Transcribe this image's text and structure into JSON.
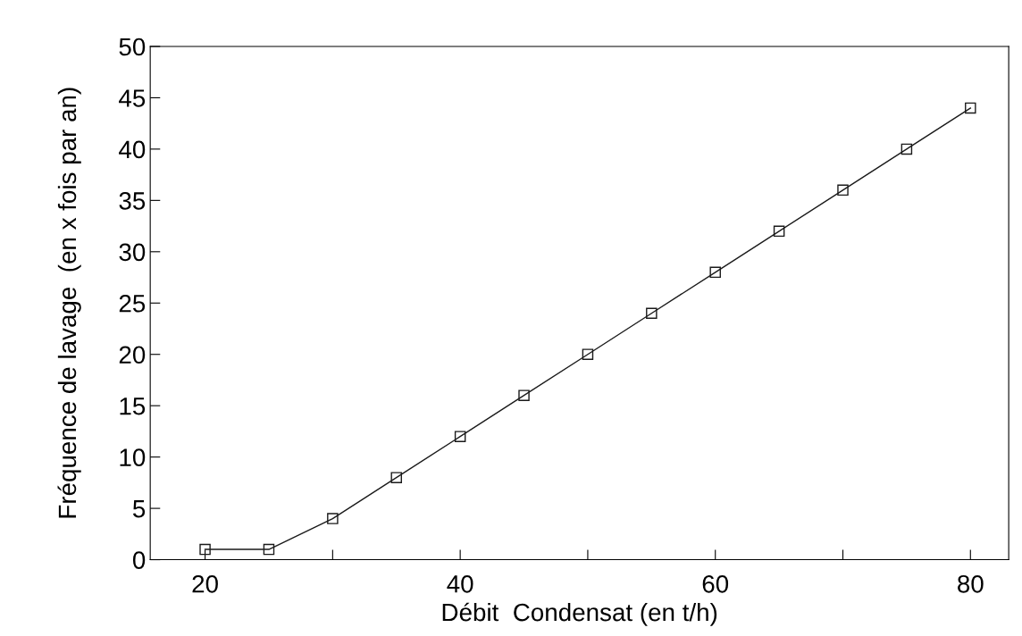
{
  "chart_data": {
    "type": "line",
    "xlabel": "Débit  Condensat (en t/h)",
    "ylabel": "Fréquence de lavage  (en x fois par an)",
    "x": [
      20,
      25,
      30,
      35,
      40,
      45,
      50,
      55,
      60,
      65,
      70,
      75,
      80
    ],
    "series": [
      {
        "color": "#1a1a1a",
        "values": [
          1,
          1,
          4,
          8,
          12,
          16,
          20,
          24,
          28,
          32,
          36,
          40,
          44
        ]
      }
    ],
    "xlim": [
      15.7,
      83
    ],
    "ylim": [
      0,
      50
    ],
    "xticks": [
      20,
      {
        "value": 30,
        "label": null
      },
      40,
      {
        "value": 50,
        "label": null
      },
      60,
      {
        "value": 70,
        "label": null
      },
      80
    ],
    "yticks": [
      0,
      5,
      10,
      15,
      20,
      25,
      30,
      35,
      40,
      45,
      50
    ],
    "marker": "square",
    "line_style": "solid",
    "grid": false,
    "legend": false
  }
}
